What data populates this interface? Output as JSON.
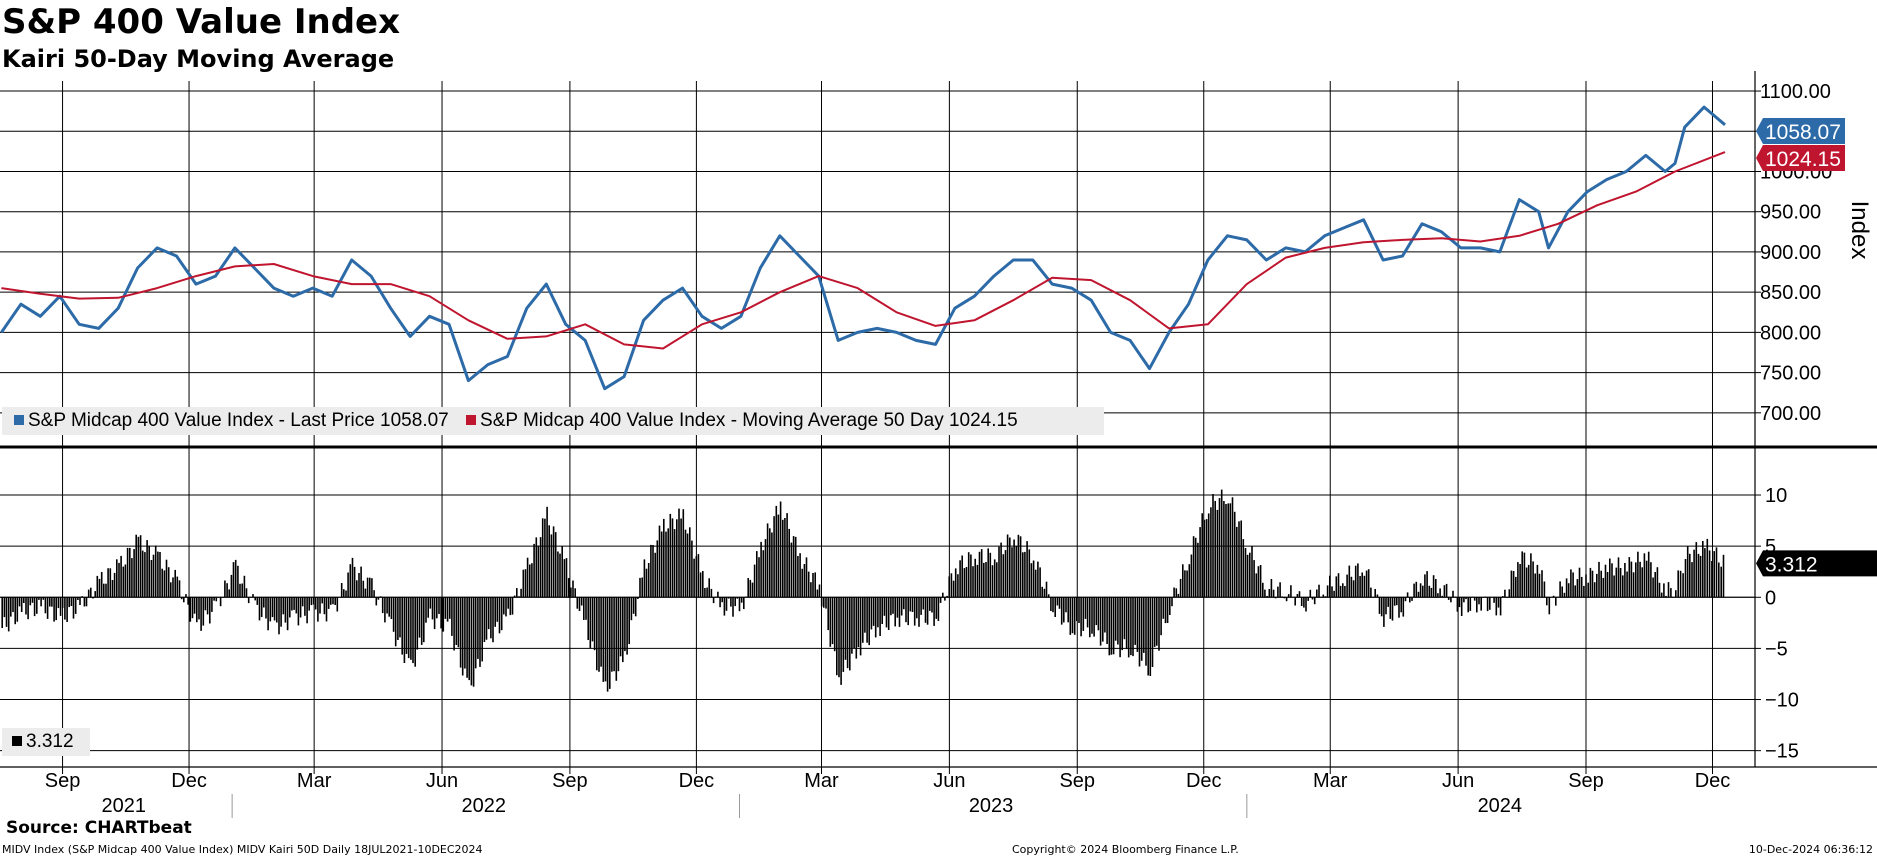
{
  "chart_data": [
    {
      "type": "line",
      "title": "S&P 400 Value Index",
      "subtitle": "Kairi 50-Day Moving Average",
      "ylabel": "Index",
      "ylim": [
        660,
        1110
      ],
      "yticks": [
        "1100.00",
        "1050.00",
        "1000.00",
        "950.00",
        "900.00",
        "850.00",
        "800.00",
        "750.00",
        "700.00"
      ],
      "x_range": [
        "2021-07-18",
        "2024-12-10"
      ],
      "grid": true,
      "legend_position": "bottom-left",
      "series": [
        {
          "name": "S&P Midcap 400 Value Index - Last Price 1058.07",
          "color": "#2c6aa8",
          "last_value_label": "1058.07",
          "points": [
            [
              "2021-07-19",
              800
            ],
            [
              "2021-08-02",
              835
            ],
            [
              "2021-08-16",
              820
            ],
            [
              "2021-08-30",
              845
            ],
            [
              "2021-09-13",
              810
            ],
            [
              "2021-09-27",
              805
            ],
            [
              "2021-10-11",
              830
            ],
            [
              "2021-10-25",
              880
            ],
            [
              "2021-11-08",
              905
            ],
            [
              "2021-11-22",
              895
            ],
            [
              "2021-12-06",
              860
            ],
            [
              "2021-12-20",
              870
            ],
            [
              "2022-01-03",
              905
            ],
            [
              "2022-01-17",
              880
            ],
            [
              "2022-01-31",
              855
            ],
            [
              "2022-02-14",
              845
            ],
            [
              "2022-02-28",
              855
            ],
            [
              "2022-03-14",
              845
            ],
            [
              "2022-03-28",
              890
            ],
            [
              "2022-04-11",
              870
            ],
            [
              "2022-04-25",
              830
            ],
            [
              "2022-05-09",
              795
            ],
            [
              "2022-05-23",
              820
            ],
            [
              "2022-06-06",
              810
            ],
            [
              "2022-06-20",
              740
            ],
            [
              "2022-07-04",
              760
            ],
            [
              "2022-07-18",
              770
            ],
            [
              "2022-08-01",
              830
            ],
            [
              "2022-08-15",
              860
            ],
            [
              "2022-08-29",
              810
            ],
            [
              "2022-09-12",
              790
            ],
            [
              "2022-09-26",
              730
            ],
            [
              "2022-10-10",
              745
            ],
            [
              "2022-10-24",
              815
            ],
            [
              "2022-11-07",
              840
            ],
            [
              "2022-11-21",
              855
            ],
            [
              "2022-12-05",
              820
            ],
            [
              "2022-12-19",
              805
            ],
            [
              "2023-01-02",
              820
            ],
            [
              "2023-01-16",
              880
            ],
            [
              "2023-01-30",
              920
            ],
            [
              "2023-02-13",
              895
            ],
            [
              "2023-02-27",
              870
            ],
            [
              "2023-03-13",
              790
            ],
            [
              "2023-03-27",
              800
            ],
            [
              "2023-04-10",
              805
            ],
            [
              "2023-04-24",
              800
            ],
            [
              "2023-05-08",
              790
            ],
            [
              "2023-05-22",
              785
            ],
            [
              "2023-06-05",
              830
            ],
            [
              "2023-06-19",
              845
            ],
            [
              "2023-07-03",
              870
            ],
            [
              "2023-07-17",
              890
            ],
            [
              "2023-07-31",
              890
            ],
            [
              "2023-08-14",
              860
            ],
            [
              "2023-08-28",
              855
            ],
            [
              "2023-09-11",
              840
            ],
            [
              "2023-09-25",
              800
            ],
            [
              "2023-10-09",
              790
            ],
            [
              "2023-10-23",
              755
            ],
            [
              "2023-11-06",
              800
            ],
            [
              "2023-11-20",
              835
            ],
            [
              "2023-12-04",
              890
            ],
            [
              "2023-12-18",
              920
            ],
            [
              "2024-01-01",
              915
            ],
            [
              "2024-01-15",
              890
            ],
            [
              "2024-01-29",
              905
            ],
            [
              "2024-02-12",
              900
            ],
            [
              "2024-02-26",
              920
            ],
            [
              "2024-03-11",
              930
            ],
            [
              "2024-03-25",
              940
            ],
            [
              "2024-04-08",
              890
            ],
            [
              "2024-04-22",
              895
            ],
            [
              "2024-05-06",
              935
            ],
            [
              "2024-05-20",
              925
            ],
            [
              "2024-06-03",
              905
            ],
            [
              "2024-06-17",
              905
            ],
            [
              "2024-07-01",
              900
            ],
            [
              "2024-07-15",
              965
            ],
            [
              "2024-07-29",
              950
            ],
            [
              "2024-08-05",
              905
            ],
            [
              "2024-08-19",
              950
            ],
            [
              "2024-09-02",
              975
            ],
            [
              "2024-09-16",
              990
            ],
            [
              "2024-09-30",
              1000
            ],
            [
              "2024-10-14",
              1020
            ],
            [
              "2024-10-28",
              1000
            ],
            [
              "2024-11-04",
              1010
            ],
            [
              "2024-11-11",
              1055
            ],
            [
              "2024-11-25",
              1080
            ],
            [
              "2024-12-10",
              1058.07
            ]
          ]
        },
        {
          "name": "S&P Midcap 400 Value Index - Moving Average 50 Day 1024.15",
          "color": "#c0152f",
          "last_value_label": "1024.15",
          "points": [
            [
              "2021-07-19",
              855
            ],
            [
              "2021-08-16",
              848
            ],
            [
              "2021-09-13",
              842
            ],
            [
              "2021-10-11",
              843
            ],
            [
              "2021-11-08",
              855
            ],
            [
              "2021-12-06",
              870
            ],
            [
              "2022-01-03",
              882
            ],
            [
              "2022-01-31",
              885
            ],
            [
              "2022-02-28",
              870
            ],
            [
              "2022-03-28",
              860
            ],
            [
              "2022-04-25",
              860
            ],
            [
              "2022-05-23",
              845
            ],
            [
              "2022-06-20",
              815
            ],
            [
              "2022-07-18",
              792
            ],
            [
              "2022-08-15",
              795
            ],
            [
              "2022-09-12",
              810
            ],
            [
              "2022-10-10",
              785
            ],
            [
              "2022-11-07",
              780
            ],
            [
              "2022-12-05",
              810
            ],
            [
              "2023-01-02",
              825
            ],
            [
              "2023-01-30",
              850
            ],
            [
              "2023-02-27",
              870
            ],
            [
              "2023-03-27",
              855
            ],
            [
              "2023-04-24",
              825
            ],
            [
              "2023-05-22",
              808
            ],
            [
              "2023-06-19",
              815
            ],
            [
              "2023-07-17",
              840
            ],
            [
              "2023-08-14",
              868
            ],
            [
              "2023-09-11",
              865
            ],
            [
              "2023-10-09",
              840
            ],
            [
              "2023-11-06",
              805
            ],
            [
              "2023-12-04",
              810
            ],
            [
              "2024-01-01",
              860
            ],
            [
              "2024-01-29",
              893
            ],
            [
              "2024-02-26",
              905
            ],
            [
              "2024-03-25",
              912
            ],
            [
              "2024-04-22",
              915
            ],
            [
              "2024-05-20",
              917
            ],
            [
              "2024-06-17",
              913
            ],
            [
              "2024-07-15",
              920
            ],
            [
              "2024-08-12",
              935
            ],
            [
              "2024-09-09",
              958
            ],
            [
              "2024-10-07",
              975
            ],
            [
              "2024-11-04",
              1000
            ],
            [
              "2024-12-10",
              1024.15
            ]
          ]
        }
      ]
    },
    {
      "type": "bar",
      "title": "",
      "ylim": [
        -16.5,
        14.5
      ],
      "yticks": [
        "10",
        "5",
        "0",
        "-5",
        "-10",
        "-15"
      ],
      "grid": true,
      "legend_position": "bottom-left",
      "series": [
        {
          "name": "3.312",
          "color": "#000000",
          "last_value_label": "3.312",
          "points": [
            [
              "2021-07-19",
              -3
            ],
            [
              "2021-08-02",
              -1.5
            ],
            [
              "2021-08-16",
              -1
            ],
            [
              "2021-08-30",
              -2
            ],
            [
              "2021-09-13",
              -1
            ],
            [
              "2021-09-27",
              1.5
            ],
            [
              "2021-10-11",
              3
            ],
            [
              "2021-10-25",
              5.5
            ],
            [
              "2021-11-08",
              4
            ],
            [
              "2021-11-22",
              1.5
            ],
            [
              "2021-12-06",
              -3
            ],
            [
              "2021-12-20",
              -1
            ],
            [
              "2022-01-03",
              3
            ],
            [
              "2022-01-17",
              -1
            ],
            [
              "2022-01-31",
              -3
            ],
            [
              "2022-02-14",
              -2
            ],
            [
              "2022-02-28",
              -1.5
            ],
            [
              "2022-03-14",
              -1.5
            ],
            [
              "2022-03-28",
              3
            ],
            [
              "2022-04-11",
              1
            ],
            [
              "2022-04-25",
              -3
            ],
            [
              "2022-05-09",
              -7
            ],
            [
              "2022-05-23",
              -2
            ],
            [
              "2022-06-06",
              -3
            ],
            [
              "2022-06-20",
              -9
            ],
            [
              "2022-07-04",
              -4
            ],
            [
              "2022-07-18",
              -2
            ],
            [
              "2022-08-01",
              3
            ],
            [
              "2022-08-15",
              8
            ],
            [
              "2022-08-29",
              3
            ],
            [
              "2022-09-12",
              -3
            ],
            [
              "2022-09-26",
              -9
            ],
            [
              "2022-10-10",
              -6
            ],
            [
              "2022-10-24",
              3
            ],
            [
              "2022-11-07",
              7
            ],
            [
              "2022-11-21",
              8
            ],
            [
              "2022-12-05",
              2
            ],
            [
              "2022-12-19",
              -1
            ],
            [
              "2023-01-02",
              -1
            ],
            [
              "2023-01-16",
              5
            ],
            [
              "2023-01-30",
              9
            ],
            [
              "2023-02-13",
              4
            ],
            [
              "2023-02-27",
              1
            ],
            [
              "2023-03-13",
              -8
            ],
            [
              "2023-03-27",
              -5
            ],
            [
              "2023-04-10",
              -3
            ],
            [
              "2023-04-24",
              -2
            ],
            [
              "2023-05-08",
              -2
            ],
            [
              "2023-05-22",
              -2
            ],
            [
              "2023-06-05",
              3
            ],
            [
              "2023-06-19",
              4
            ],
            [
              "2023-07-03",
              4
            ],
            [
              "2023-07-17",
              6
            ],
            [
              "2023-07-31",
              4
            ],
            [
              "2023-08-14",
              -1
            ],
            [
              "2023-08-28",
              -3
            ],
            [
              "2023-09-11",
              -3
            ],
            [
              "2023-09-25",
              -5
            ],
            [
              "2023-10-09",
              -5
            ],
            [
              "2023-10-23",
              -7
            ],
            [
              "2023-11-06",
              -1
            ],
            [
              "2023-11-20",
              4
            ],
            [
              "2023-12-04",
              9
            ],
            [
              "2023-12-18",
              10
            ],
            [
              "2024-01-01",
              5
            ],
            [
              "2024-01-15",
              1
            ],
            [
              "2024-01-29",
              0.5
            ],
            [
              "2024-02-12",
              -0.5
            ],
            [
              "2024-02-26",
              1
            ],
            [
              "2024-03-11",
              2
            ],
            [
              "2024-03-25",
              3
            ],
            [
              "2024-04-08",
              -2
            ],
            [
              "2024-04-22",
              -1
            ],
            [
              "2024-05-06",
              2
            ],
            [
              "2024-05-20",
              1
            ],
            [
              "2024-06-03",
              -1
            ],
            [
              "2024-06-17",
              -0.5
            ],
            [
              "2024-07-01",
              -1
            ],
            [
              "2024-07-15",
              4
            ],
            [
              "2024-07-29",
              3
            ],
            [
              "2024-08-05",
              -1
            ],
            [
              "2024-08-19",
              2
            ],
            [
              "2024-09-02",
              2
            ],
            [
              "2024-09-16",
              3
            ],
            [
              "2024-09-30",
              3
            ],
            [
              "2024-10-14",
              4
            ],
            [
              "2024-10-28",
              0.5
            ],
            [
              "2024-11-04",
              1
            ],
            [
              "2024-11-11",
              4
            ],
            [
              "2024-11-25",
              5
            ],
            [
              "2024-12-10",
              3.312
            ]
          ]
        }
      ]
    }
  ],
  "x_axis": {
    "months": [
      {
        "label": "Sep",
        "date": "2021-09-01"
      },
      {
        "label": "Dec",
        "date": "2021-12-01"
      },
      {
        "label": "Mar",
        "date": "2022-03-01"
      },
      {
        "label": "Jun",
        "date": "2022-06-01"
      },
      {
        "label": "Sep",
        "date": "2022-09-01"
      },
      {
        "label": "Dec",
        "date": "2022-12-01"
      },
      {
        "label": "Mar",
        "date": "2023-03-01"
      },
      {
        "label": "Jun",
        "date": "2023-06-01"
      },
      {
        "label": "Sep",
        "date": "2023-09-01"
      },
      {
        "label": "Dec",
        "date": "2023-12-01"
      },
      {
        "label": "Mar",
        "date": "2024-03-01"
      },
      {
        "label": "Jun",
        "date": "2024-06-01"
      },
      {
        "label": "Sep",
        "date": "2024-09-01"
      },
      {
        "label": "Dec",
        "date": "2024-12-01"
      }
    ],
    "years": [
      "2021",
      "2022",
      "2023",
      "2024"
    ]
  },
  "header": {
    "title": "S&P 400 Value Index",
    "subtitle": "Kairi 50-Day Moving Average"
  },
  "footer": {
    "source": "Source: CHARTbeat",
    "left": "MIDV Index (S&P Midcap 400 Value Index) MIDV Kairi 50D  Daily 18JUL2021-10DEC2024",
    "center": "Copyright© 2024 Bloomberg Finance L.P.",
    "right": "10-Dec-2024 06:36:12"
  }
}
